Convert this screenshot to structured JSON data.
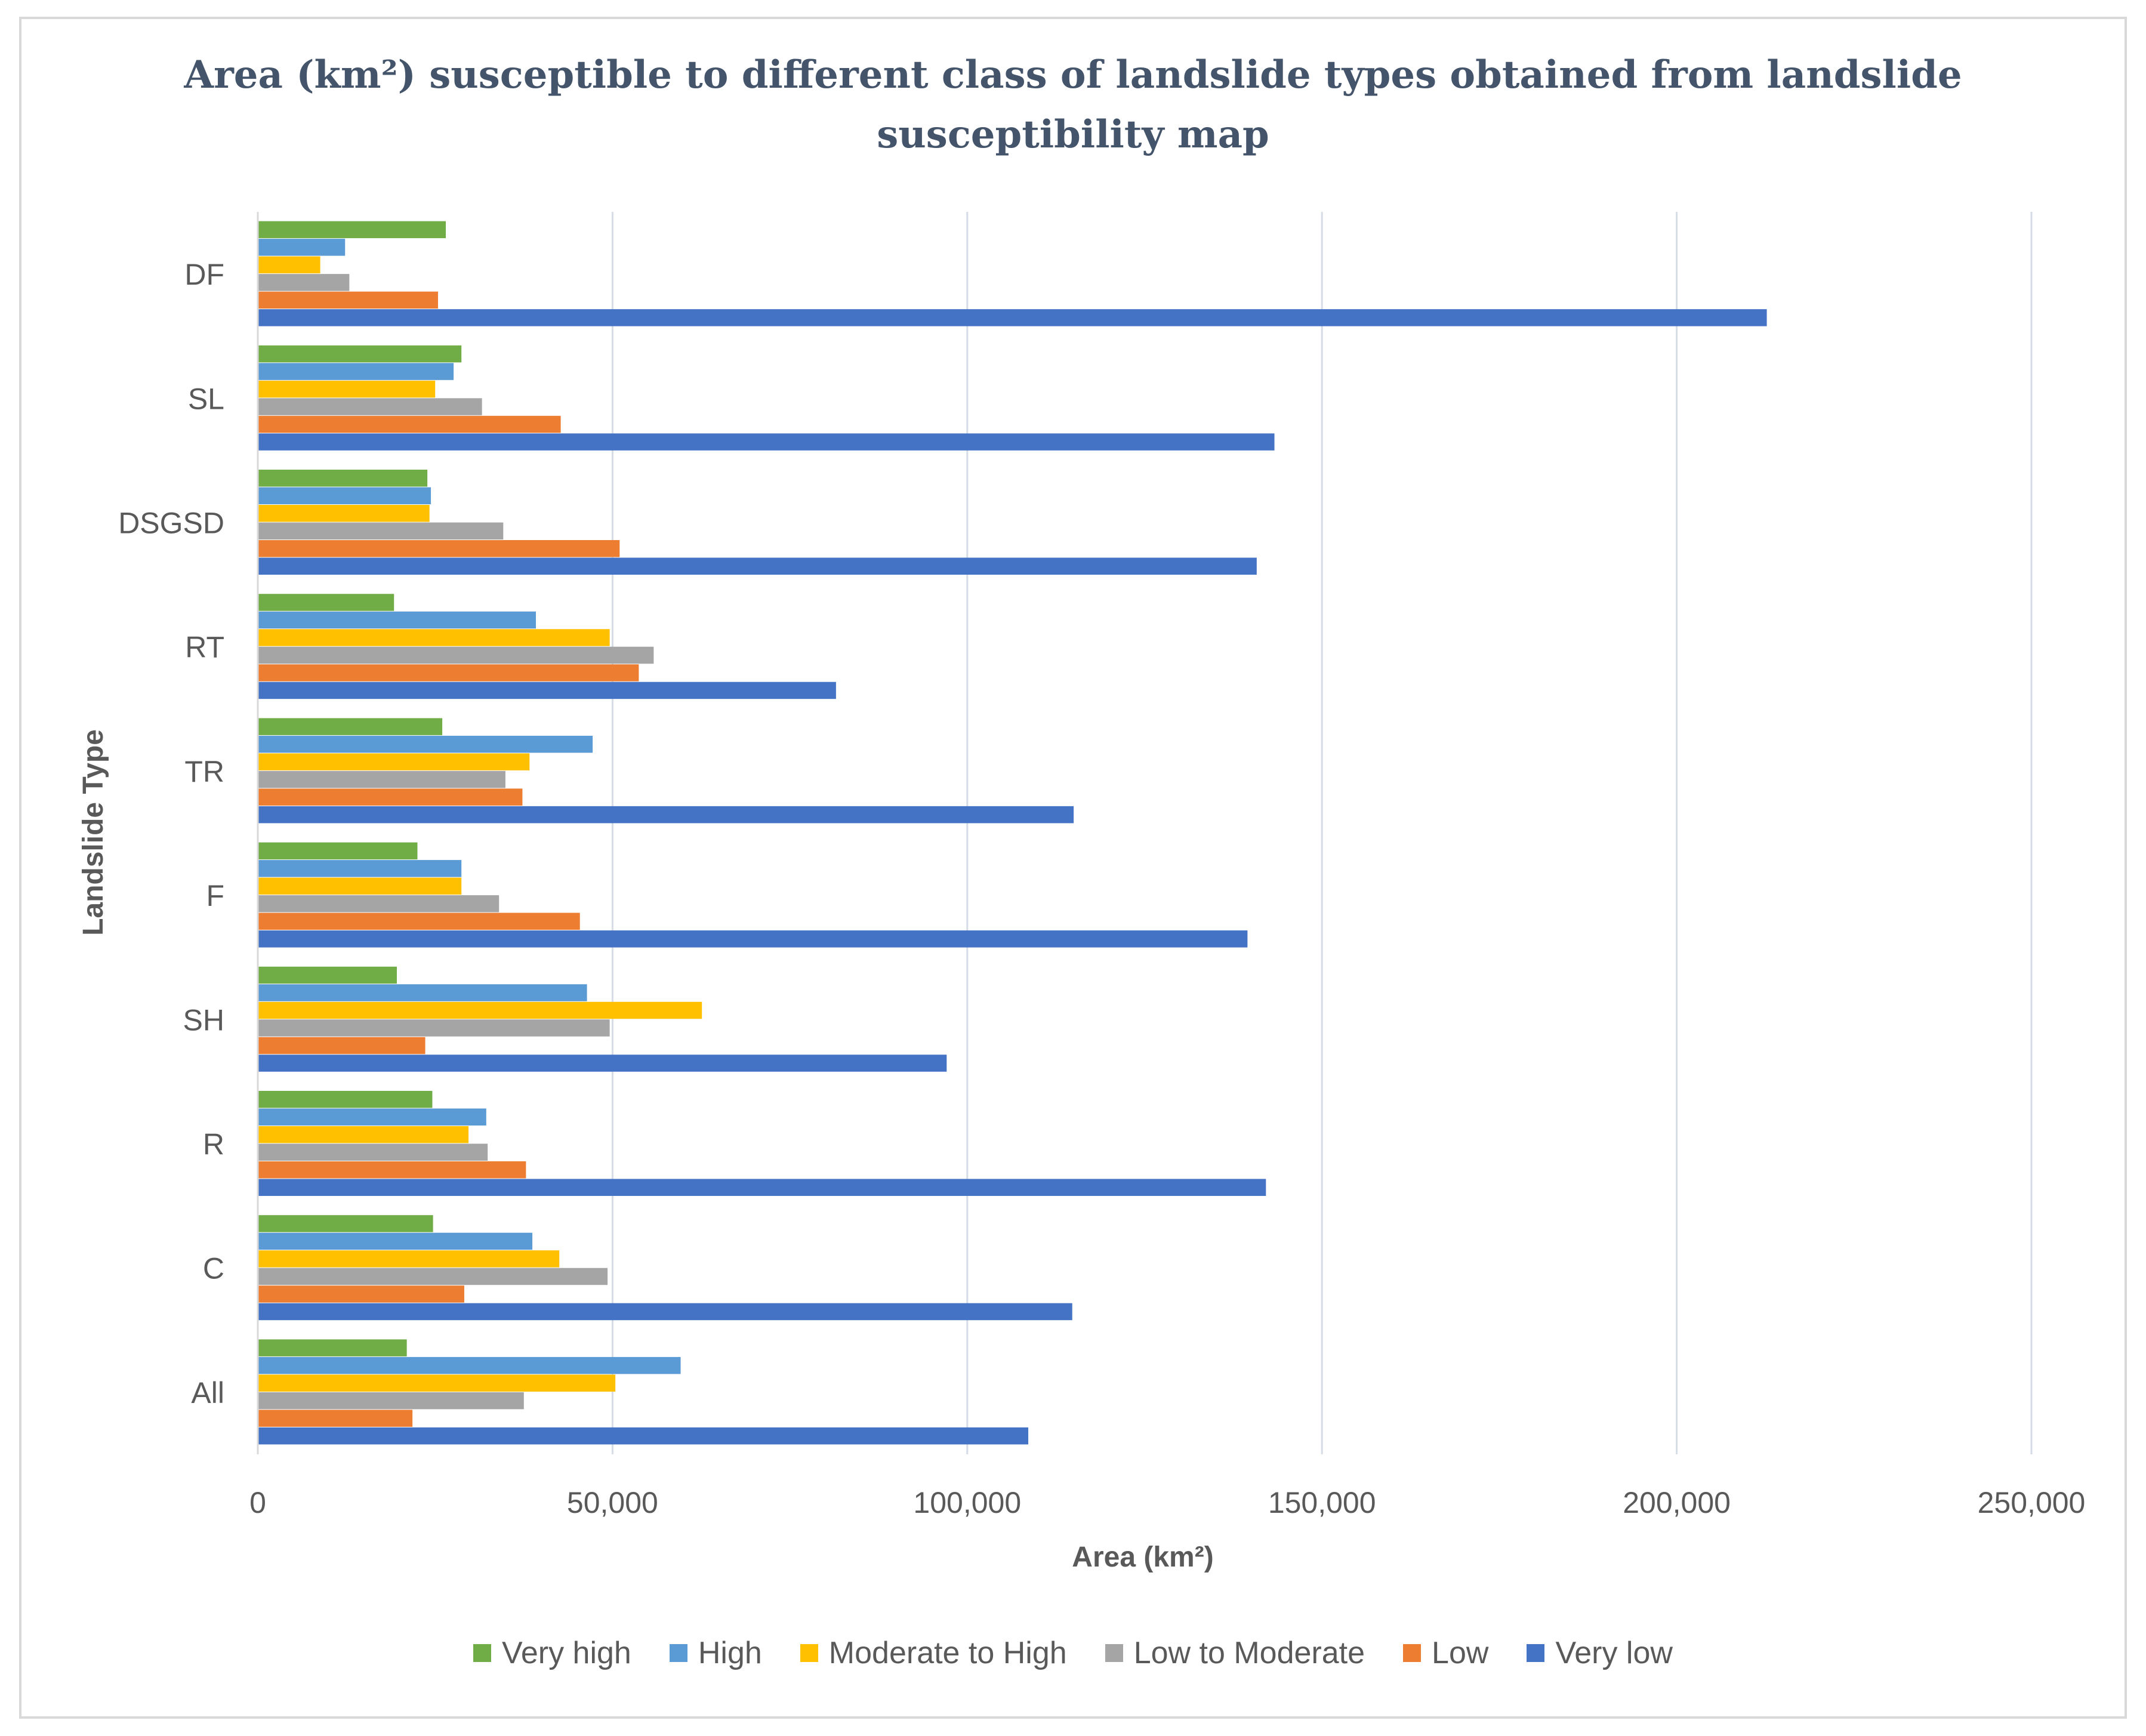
{
  "chart_data": {
    "type": "bar",
    "orientation": "horizontal",
    "title": "Area (km²) susceptible to different class of landslide types obtained from landslide susceptibility map",
    "title_lines": [
      "Area (km²) susceptible to different class of landslide types obtained from landslide",
      "susceptibility map"
    ],
    "xlabel": "Area (km²)",
    "ylabel": "Landslide Type",
    "xlim": [
      0,
      250000
    ],
    "xticks": [
      0,
      50000,
      100000,
      150000,
      200000,
      250000
    ],
    "xtick_labels": [
      "0",
      "50,000",
      "100,000",
      "150,000",
      "200,000",
      "250,000"
    ],
    "grid": "vertical",
    "legend_position": "bottom",
    "categories": [
      "DF",
      "SL",
      "DSGSD",
      "RT",
      "TR",
      "F",
      "SH",
      "R",
      "C",
      "All"
    ],
    "series": [
      {
        "name": "Very high",
        "color": "#70ad47",
        "values": [
          26500,
          28700,
          23900,
          19200,
          26000,
          22500,
          19600,
          24600,
          24700,
          21000
        ]
      },
      {
        "name": "High",
        "color": "#5b9bd5",
        "values": [
          12300,
          27600,
          24400,
          39200,
          47200,
          28700,
          46400,
          32200,
          38700,
          59600
        ]
      },
      {
        "name": "Moderate to High",
        "color": "#ffc000",
        "values": [
          8800,
          25000,
          24200,
          49600,
          38300,
          28700,
          62600,
          29700,
          42500,
          50400
        ]
      },
      {
        "name": "Low to Moderate",
        "color": "#a5a5a5",
        "values": [
          12900,
          31600,
          34600,
          55800,
          34900,
          34000,
          49600,
          32400,
          49300,
          37500
        ]
      },
      {
        "name": "Low",
        "color": "#ed7d31",
        "values": [
          25400,
          42700,
          51000,
          53700,
          37300,
          45400,
          23600,
          37800,
          29100,
          21800
        ]
      },
      {
        "name": "Very low",
        "color": "#4472c4",
        "values": [
          212700,
          143300,
          140800,
          81500,
          115000,
          139500,
          97100,
          142100,
          114800,
          108600
        ]
      }
    ]
  }
}
